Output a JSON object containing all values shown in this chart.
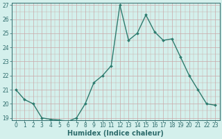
{
  "x": [
    0,
    1,
    2,
    3,
    4,
    5,
    6,
    7,
    8,
    9,
    10,
    11,
    12,
    13,
    14,
    15,
    16,
    17,
    18,
    19,
    20,
    21,
    22,
    23
  ],
  "y": [
    21.0,
    20.3,
    20.0,
    19.0,
    18.9,
    18.85,
    18.75,
    19.0,
    20.0,
    21.5,
    22.0,
    22.7,
    27.0,
    24.5,
    25.0,
    26.3,
    25.1,
    24.5,
    24.6,
    23.3,
    22.0,
    21.0,
    20.0,
    19.9
  ],
  "line_color": "#2d7b6e",
  "marker": "D",
  "marker_size": 2.0,
  "bg_color": "#d4f0ec",
  "grid_color": "#c9a8a8",
  "xlabel": "Humidex (Indice chaleur)",
  "ylim": [
    19,
    27
  ],
  "xlim": [
    -0.5,
    23.5
  ],
  "yticks": [
    19,
    20,
    21,
    22,
    23,
    24,
    25,
    26,
    27
  ],
  "xticks": [
    0,
    1,
    2,
    3,
    4,
    5,
    6,
    7,
    8,
    9,
    10,
    11,
    12,
    13,
    14,
    15,
    16,
    17,
    18,
    19,
    20,
    21,
    22,
    23
  ],
  "font_color": "#2d6b6b",
  "tick_fontsize": 5.5,
  "xlabel_fontsize": 7,
  "line_width": 1.0
}
